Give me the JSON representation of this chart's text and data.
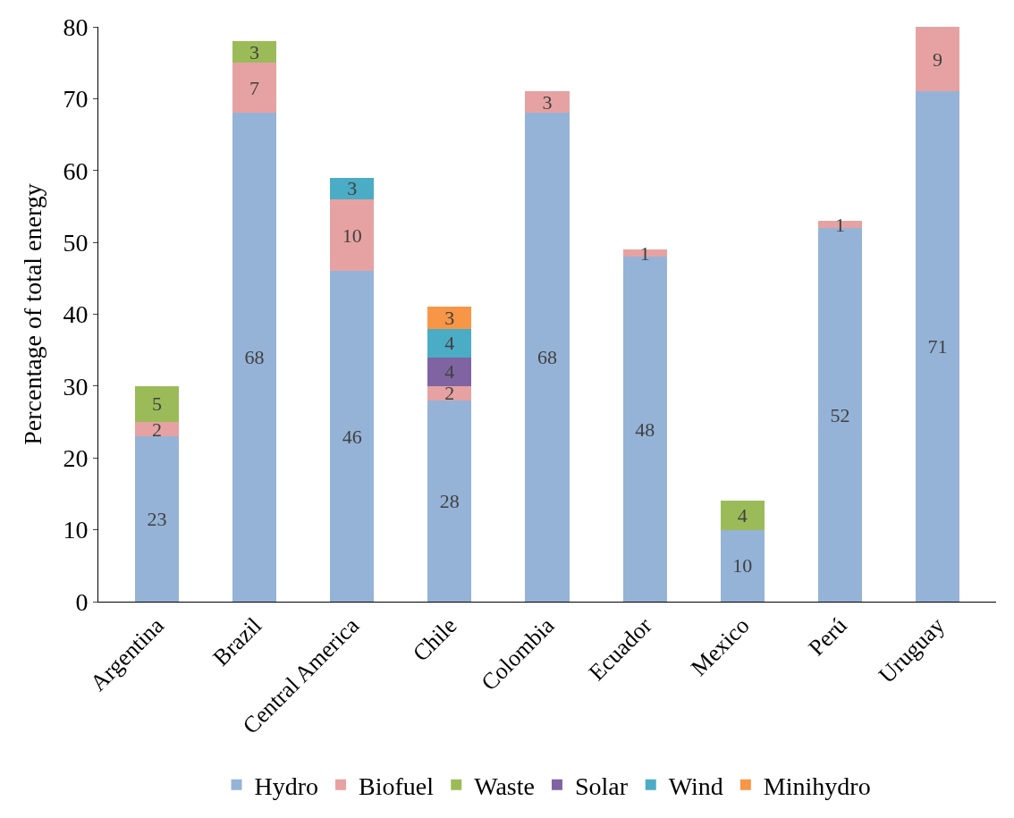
{
  "chart_data": {
    "type": "bar",
    "stacked": true,
    "ylabel": "Percentage of total energy",
    "categories": [
      "Argentina",
      "Brazil",
      "Central America",
      "Chile",
      "Colombia",
      "Ecuador",
      "Mexico",
      "Perú",
      "Uruguay"
    ],
    "series": [
      {
        "name": "Hydro",
        "color": "#95b3d7",
        "values": [
          23,
          68,
          46,
          28,
          68,
          48,
          10,
          52,
          71
        ]
      },
      {
        "name": "Biofuel",
        "color": "#e6a2a2",
        "values": [
          2,
          7,
          10,
          2,
          3,
          1,
          null,
          1,
          9
        ]
      },
      {
        "name": "Waste",
        "color": "#9bbb59",
        "values": [
          5,
          3,
          null,
          null,
          null,
          null,
          4,
          null,
          null
        ]
      },
      {
        "name": "Solar",
        "color": "#8064a2",
        "values": [
          null,
          null,
          null,
          4,
          null,
          null,
          null,
          null,
          null
        ]
      },
      {
        "name": "Wind",
        "color": "#4bacc6",
        "values": [
          null,
          null,
          3,
          4,
          null,
          null,
          null,
          null,
          null
        ]
      },
      {
        "name": "Minihydro",
        "color": "#f79646",
        "values": [
          null,
          null,
          null,
          3,
          null,
          null,
          null,
          null,
          null
        ]
      }
    ],
    "ylim": [
      0,
      80
    ],
    "yticks": [
      0,
      10,
      20,
      30,
      40,
      50,
      60,
      70,
      80
    ],
    "legend": "bottom",
    "data_labels": true
  }
}
